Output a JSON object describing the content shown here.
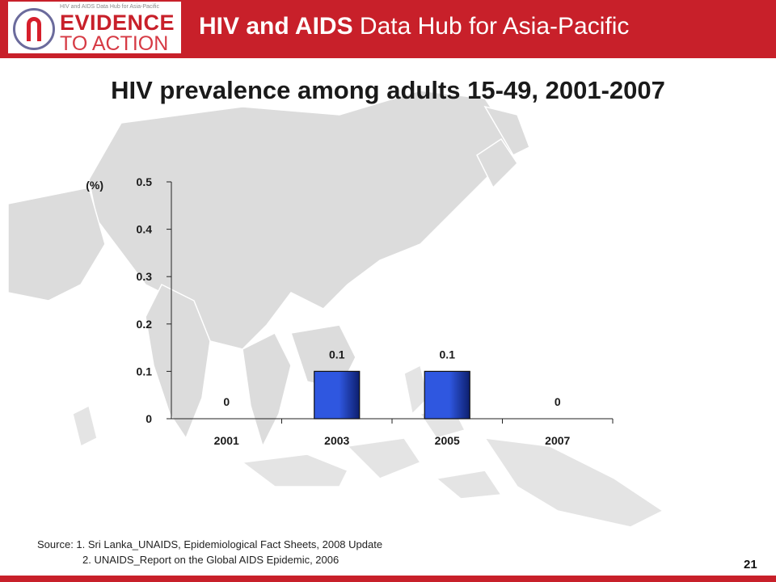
{
  "header": {
    "logo_tagline": "HIV and AIDS Data Hub for Asia-Pacific",
    "logo_line1": "EVIDENCE",
    "logo_line2": "TO ACTION",
    "hub_title_bold": "HIV and AIDS",
    "hub_title_rest": " Data Hub for Asia-Pacific"
  },
  "chart_data": {
    "type": "bar",
    "title": "HIV prevalence among adults 15-49, 2001-2007",
    "ylabel": "(%)",
    "xlabel": "",
    "categories": [
      "2001",
      "2003",
      "2005",
      "2007"
    ],
    "values": [
      0,
      0.1,
      0.1,
      0
    ],
    "data_labels": [
      "0",
      "0.1",
      "0.1",
      "0"
    ],
    "ylim": [
      0,
      0.5
    ],
    "yticks": [
      0,
      0.1,
      0.2,
      0.3,
      0.4,
      0.5
    ],
    "ytick_labels": [
      "0",
      "0.1",
      "0.2",
      "0.3",
      "0.4",
      "0.5"
    ],
    "grid": false,
    "bar_color": "#2f57e0",
    "bar_dark": "#0d1f6e"
  },
  "footer": {
    "source_line1": "Source: 1. Sri Lanka_UNAIDS, Epidemiological Fact Sheets, 2008 Update",
    "source_line2": "2. UNAIDS_Report on the Global AIDS Epidemic, 2006",
    "page_number": "21"
  },
  "colors": {
    "brand_red": "#c8202a"
  }
}
